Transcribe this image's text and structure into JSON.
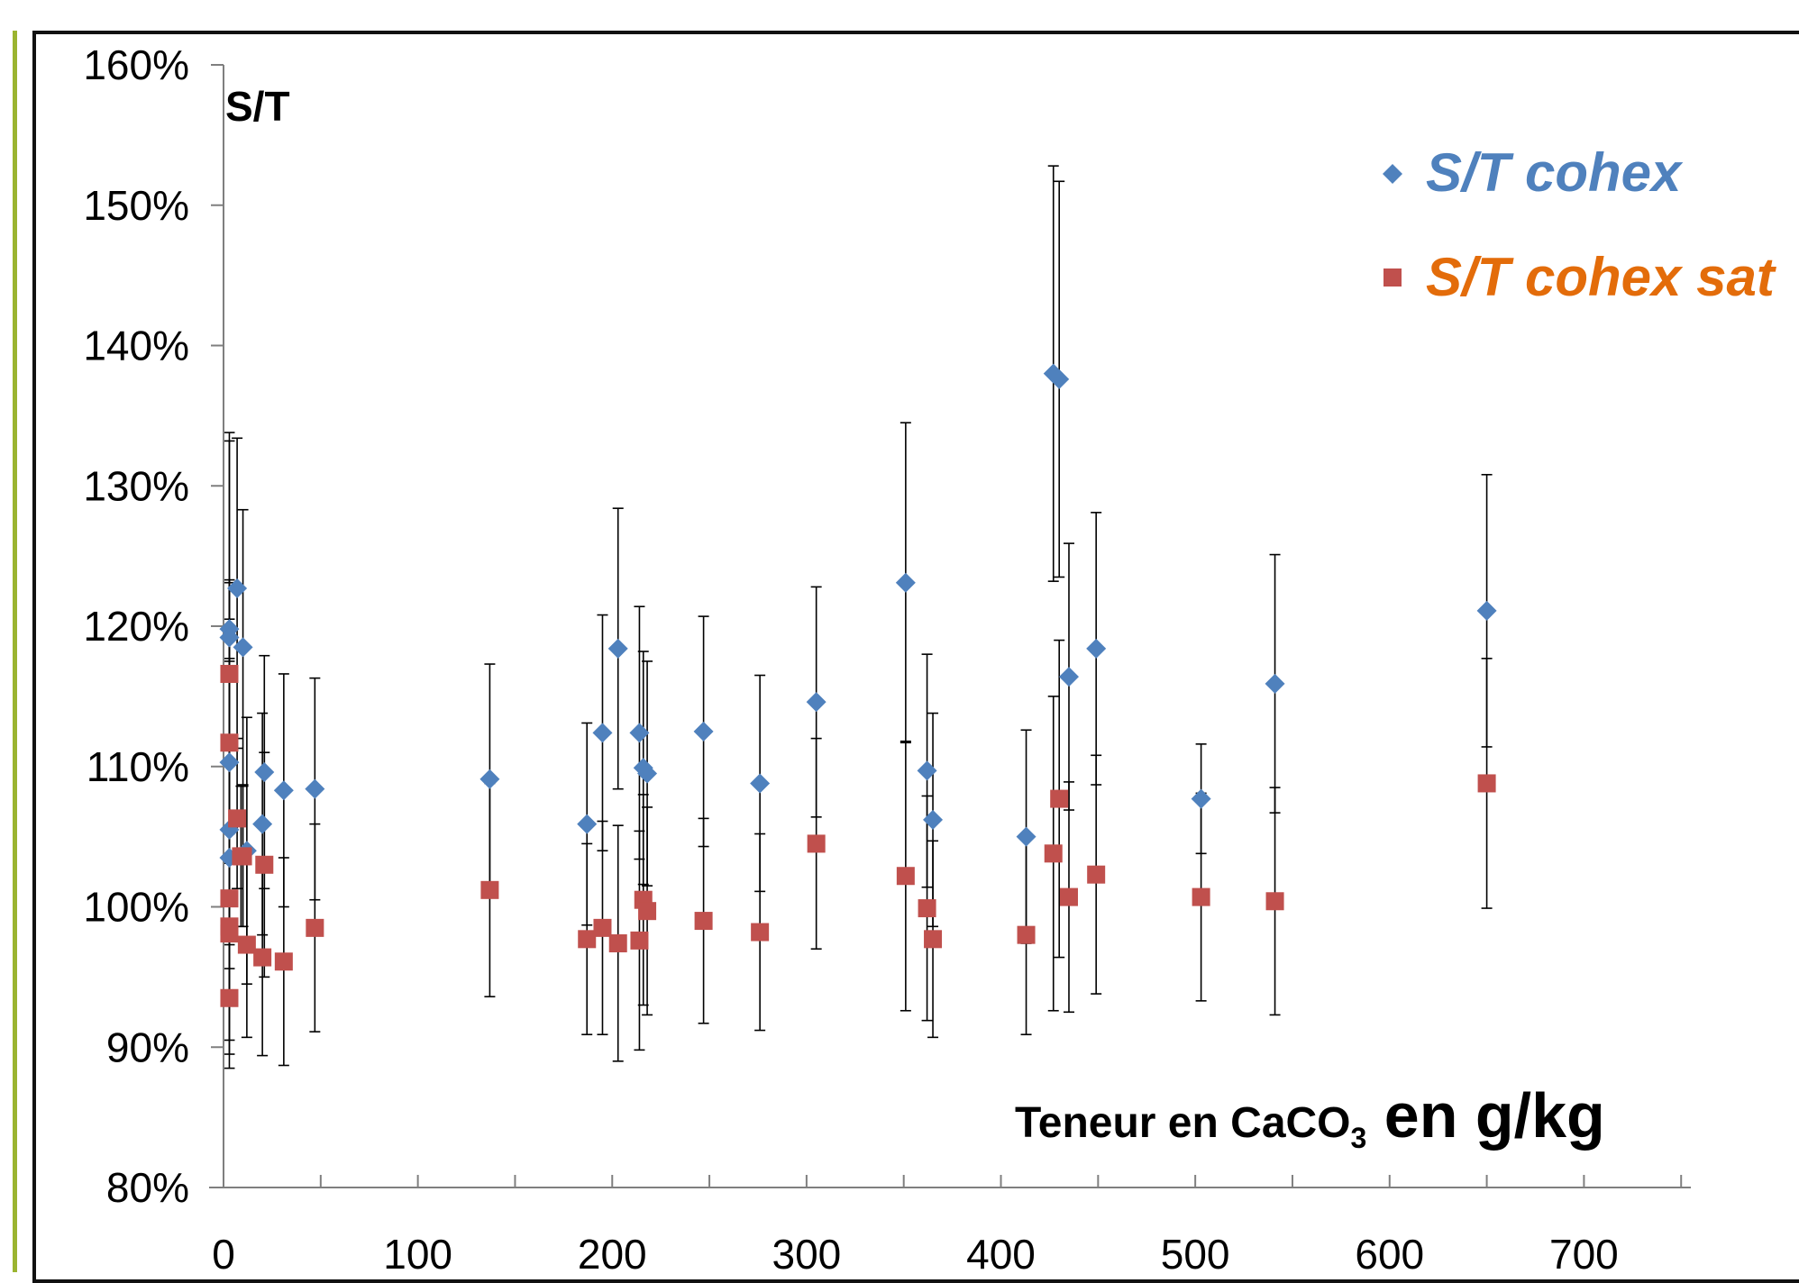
{
  "colors": {
    "frame_accent": "#9bb430",
    "axis": "#7f7f7f",
    "series1_marker": "#4f81bd",
    "series1_label": "#4f81bd",
    "series2_marker": "#c0504d",
    "series2_label": "#e36c0a",
    "error_bar": "#000000"
  },
  "chart_data": {
    "type": "scatter",
    "ylabel": "S/T",
    "xlabel_parts": {
      "pre": "Teneur en CaCO",
      "sub": "3",
      "post": " en g/kg"
    },
    "xlim": [
      0,
      755
    ],
    "ylim": [
      0.8,
      1.6
    ],
    "x_ticks": [
      0,
      100,
      200,
      300,
      400,
      500,
      600,
      700
    ],
    "x_tick_labels": [
      "0",
      "100",
      "200",
      "300",
      "400",
      "500",
      "600",
      "700"
    ],
    "y_ticks": [
      0.8,
      0.9,
      1.0,
      1.1,
      1.2,
      1.3,
      1.4,
      1.5,
      1.6
    ],
    "y_tick_labels": [
      "80%",
      "90%",
      "100%",
      "110%",
      "120%",
      "130%",
      "140%",
      "150%",
      "160%"
    ],
    "legend_position": "top-right",
    "series": [
      {
        "name": "S/T cohex",
        "marker": "diamond",
        "points": [
          {
            "x": 3,
            "y": 1.198,
            "err": 0.14
          },
          {
            "x": 3,
            "y": 1.192,
            "err": 0.14
          },
          {
            "x": 3,
            "y": 1.103,
            "err": 0.13
          },
          {
            "x": 3,
            "y": 1.055,
            "err": 0.15
          },
          {
            "x": 3,
            "y": 1.035,
            "err": 0.14
          },
          {
            "x": 7,
            "y": 1.227,
            "err": 0.107
          },
          {
            "x": 10,
            "y": 1.185,
            "err": 0.098
          },
          {
            "x": 12,
            "y": 1.04,
            "err": 0.095
          },
          {
            "x": 20,
            "y": 1.059,
            "err": 0.079
          },
          {
            "x": 21,
            "y": 1.096,
            "err": 0.083
          },
          {
            "x": 31,
            "y": 1.083,
            "err": 0.083
          },
          {
            "x": 47,
            "y": 1.084,
            "err": 0.079
          },
          {
            "x": 137,
            "y": 1.091,
            "err": 0.082
          },
          {
            "x": 187,
            "y": 1.059,
            "err": 0.072
          },
          {
            "x": 195,
            "y": 1.124,
            "err": 0.084
          },
          {
            "x": 203,
            "y": 1.184,
            "err": 0.1
          },
          {
            "x": 214,
            "y": 1.124,
            "err": 0.09
          },
          {
            "x": 216,
            "y": 1.099,
            "err": 0.083
          },
          {
            "x": 218,
            "y": 1.095,
            "err": 0.08
          },
          {
            "x": 247,
            "y": 1.125,
            "err": 0.082
          },
          {
            "x": 276,
            "y": 1.088,
            "err": 0.077
          },
          {
            "x": 305,
            "y": 1.146,
            "err": 0.082
          },
          {
            "x": 351,
            "y": 1.231,
            "err": 0.114
          },
          {
            "x": 362,
            "y": 1.097,
            "err": 0.083
          },
          {
            "x": 365,
            "y": 1.062,
            "err": 0.076
          },
          {
            "x": 413,
            "y": 1.05,
            "err": 0.076
          },
          {
            "x": 427,
            "y": 1.38,
            "err": 0.148
          },
          {
            "x": 430,
            "y": 1.376,
            "err": 0.141
          },
          {
            "x": 435,
            "y": 1.164,
            "err": 0.095
          },
          {
            "x": 449,
            "y": 1.184,
            "err": 0.097
          },
          {
            "x": 503,
            "y": 1.077,
            "err": 0.039
          },
          {
            "x": 541,
            "y": 1.159,
            "err": 0.092
          },
          {
            "x": 650,
            "y": 1.211,
            "err": 0.097
          }
        ]
      },
      {
        "name": "S/T cohex sat",
        "marker": "square",
        "points": [
          {
            "x": 3,
            "y": 1.166,
            "err": 0.065
          },
          {
            "x": 3,
            "y": 1.117,
            "err": 0.06
          },
          {
            "x": 3,
            "y": 1.006,
            "err": 0.05
          },
          {
            "x": 3,
            "y": 0.986,
            "err": 0.05
          },
          {
            "x": 3,
            "y": 0.981,
            "err": 0.05
          },
          {
            "x": 3,
            "y": 0.935,
            "err": 0.05
          },
          {
            "x": 7,
            "y": 1.063,
            "err": 0.05
          },
          {
            "x": 9,
            "y": 1.036,
            "err": 0.05
          },
          {
            "x": 10,
            "y": 1.036,
            "err": 0.05
          },
          {
            "x": 12,
            "y": 0.973,
            "err": 0.066
          },
          {
            "x": 20,
            "y": 0.964,
            "err": 0.07
          },
          {
            "x": 21,
            "y": 1.03,
            "err": 0.08
          },
          {
            "x": 31,
            "y": 0.961,
            "err": 0.074
          },
          {
            "x": 47,
            "y": 0.985,
            "err": 0.074
          },
          {
            "x": 137,
            "y": 1.012,
            "err": 0.076
          },
          {
            "x": 187,
            "y": 0.977,
            "err": 0.068
          },
          {
            "x": 195,
            "y": 0.985,
            "err": 0.076
          },
          {
            "x": 203,
            "y": 0.974,
            "err": 0.084
          },
          {
            "x": 214,
            "y": 0.976,
            "err": 0.078
          },
          {
            "x": 216,
            "y": 1.005,
            "err": 0.075
          },
          {
            "x": 218,
            "y": 0.997,
            "err": 0.074
          },
          {
            "x": 247,
            "y": 0.99,
            "err": 0.073
          },
          {
            "x": 276,
            "y": 0.982,
            "err": 0.07
          },
          {
            "x": 305,
            "y": 1.045,
            "err": 0.075
          },
          {
            "x": 351,
            "y": 1.022,
            "err": 0.096
          },
          {
            "x": 362,
            "y": 0.999,
            "err": 0.08
          },
          {
            "x": 365,
            "y": 0.977,
            "err": 0.07
          },
          {
            "x": 413,
            "y": 0.98,
            "err": 0.071
          },
          {
            "x": 427,
            "y": 1.038,
            "err": 0.112
          },
          {
            "x": 430,
            "y": 1.077,
            "err": 0.113
          },
          {
            "x": 435,
            "y": 1.007,
            "err": 0.082
          },
          {
            "x": 449,
            "y": 1.023,
            "err": 0.085
          },
          {
            "x": 503,
            "y": 1.007,
            "err": 0.074
          },
          {
            "x": 541,
            "y": 1.004,
            "err": 0.081
          },
          {
            "x": 650,
            "y": 1.088,
            "err": 0.089
          }
        ]
      }
    ]
  }
}
